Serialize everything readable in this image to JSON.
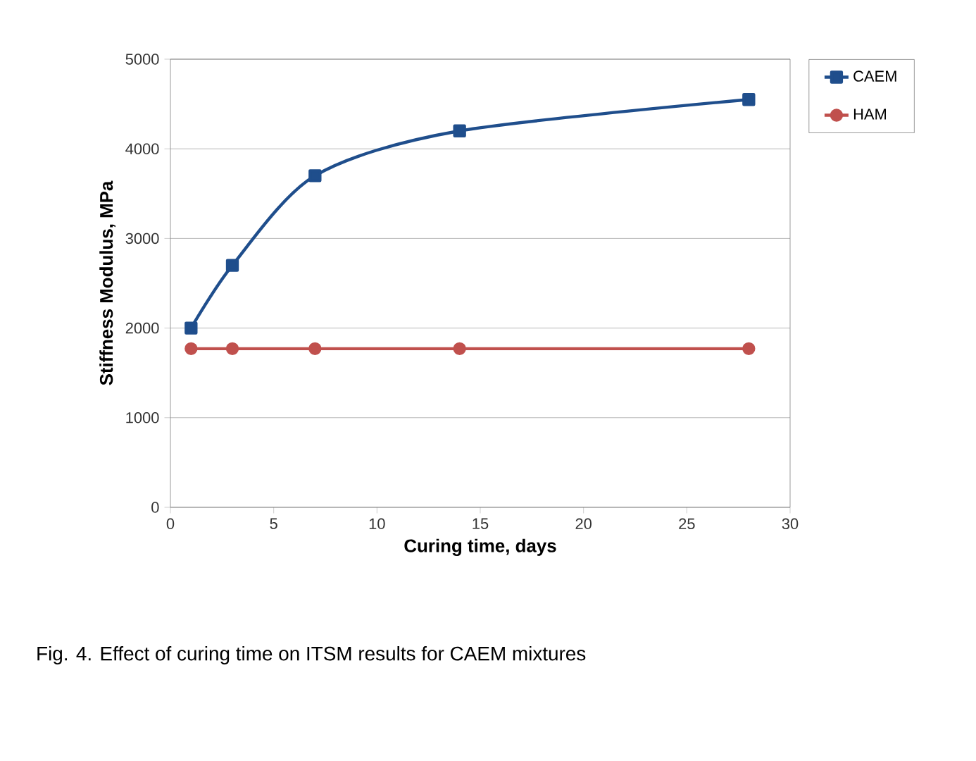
{
  "chart_data": {
    "type": "line",
    "xlabel": "Curing time, days",
    "ylabel": "Stiffness Modulus, MPa",
    "annotations": [
      "Fig. 4. Effect of curing time on ITSM results for CAEM mixtures"
    ],
    "x": [
      1,
      3,
      7,
      14,
      28
    ],
    "series": [
      {
        "name": "CAEM",
        "color": "#1f4e8c",
        "marker": "square",
        "values": [
          2000,
          2700,
          3700,
          4200,
          4550
        ]
      },
      {
        "name": "HAM",
        "color": "#c0504d",
        "marker": "circle",
        "values": [
          1770,
          1770,
          1770,
          1770,
          1770
        ]
      }
    ],
    "xlim": [
      0,
      30
    ],
    "xticks": [
      0,
      5,
      10,
      15,
      20,
      25,
      30
    ],
    "ylim": [
      0,
      5000
    ],
    "yticks": [
      0,
      1000,
      2000,
      3000,
      4000,
      5000
    ],
    "grid": "y",
    "legend": "top right"
  }
}
